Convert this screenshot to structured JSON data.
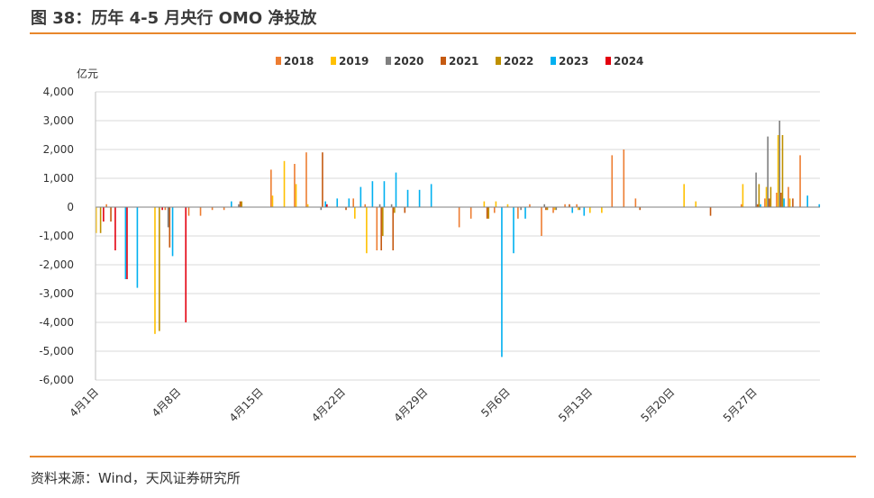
{
  "header": {
    "title": "图 38：历年 4-5 月央行 OMO 净投放"
  },
  "footer": {
    "source": "资料来源：Wind，天风证券研究所"
  },
  "chart_data": {
    "type": "bar",
    "ylabel": "亿元",
    "ylim": [
      -6000,
      4000
    ],
    "yticks": [
      4000,
      3000,
      2000,
      1000,
      0,
      -1000,
      -2000,
      -3000,
      -4000,
      -5000,
      -6000
    ],
    "ytick_labels": [
      "4,000",
      "3,000",
      "2,000",
      "1,000",
      "0",
      "-1,000",
      "-2,000",
      "-3,000",
      "-4,000",
      "-5,000",
      "-6,000"
    ],
    "x_range": [
      0,
      61
    ],
    "x_ticks": [
      {
        "x": 0,
        "label": "4月1日"
      },
      {
        "x": 7,
        "label": "4月8日"
      },
      {
        "x": 14,
        "label": "4月15日"
      },
      {
        "x": 21,
        "label": "4月22日"
      },
      {
        "x": 28,
        "label": "4月29日"
      },
      {
        "x": 35,
        "label": "5月6日"
      },
      {
        "x": 42,
        "label": "5月13日"
      },
      {
        "x": 49,
        "label": "5月20日"
      },
      {
        "x": 56,
        "label": "5月27日"
      }
    ],
    "legend_position": "top",
    "series": [
      {
        "name": "2018",
        "color": "#ed7d31",
        "points": [
          [
            1,
            100
          ],
          [
            6,
            -100
          ],
          [
            8,
            -300
          ],
          [
            9,
            -300
          ],
          [
            10,
            -100
          ],
          [
            11,
            -100
          ],
          [
            12,
            0
          ],
          [
            15,
            1300
          ],
          [
            17,
            1500
          ],
          [
            18,
            1900
          ],
          [
            22,
            300
          ],
          [
            23,
            100
          ],
          [
            24,
            -1500
          ],
          [
            31,
            -700
          ],
          [
            32,
            -400
          ],
          [
            34,
            -200
          ],
          [
            36,
            -400
          ],
          [
            37,
            100
          ],
          [
            38,
            -1000
          ],
          [
            39,
            -200
          ],
          [
            40,
            100
          ],
          [
            41,
            100
          ],
          [
            44,
            1800
          ],
          [
            45,
            2000
          ],
          [
            46,
            300
          ],
          [
            55,
            100
          ],
          [
            57,
            300
          ],
          [
            58,
            500
          ],
          [
            59,
            700
          ],
          [
            60,
            1800
          ]
        ]
      },
      {
        "name": "2019",
        "color": "#ffc000",
        "points": [
          [
            0,
            -900
          ],
          [
            5,
            -4400
          ],
          [
            15,
            400
          ],
          [
            16,
            1600
          ],
          [
            17,
            800
          ],
          [
            18,
            100
          ],
          [
            22,
            -400
          ],
          [
            23,
            -1600
          ],
          [
            33,
            200
          ],
          [
            34,
            200
          ],
          [
            35,
            100
          ],
          [
            39,
            -100
          ],
          [
            41,
            -100
          ],
          [
            42,
            -200
          ],
          [
            43,
            -200
          ],
          [
            50,
            800
          ],
          [
            51,
            200
          ],
          [
            55,
            800
          ],
          [
            57,
            700
          ],
          [
            58,
            2500
          ],
          [
            59,
            300
          ]
        ]
      },
      {
        "name": "2020",
        "color": "#7f7f7f",
        "points": [
          [
            6,
            -700
          ],
          [
            12,
            100
          ],
          [
            19,
            -100
          ],
          [
            24,
            100
          ],
          [
            25,
            100
          ],
          [
            36,
            -100
          ],
          [
            38,
            100
          ],
          [
            39,
            -100
          ],
          [
            41,
            -100
          ],
          [
            56,
            1200
          ],
          [
            57,
            2450
          ],
          [
            58,
            3000
          ]
        ]
      },
      {
        "name": "2021",
        "color": "#c55a11",
        "points": [
          [
            1,
            -500
          ],
          [
            6,
            -1400
          ],
          [
            12,
            200
          ],
          [
            19,
            1900
          ],
          [
            21,
            -100
          ],
          [
            24,
            -1500
          ],
          [
            25,
            -1500
          ],
          [
            26,
            -200
          ],
          [
            33,
            -400
          ],
          [
            38,
            -100
          ],
          [
            40,
            100
          ],
          [
            46,
            -100
          ],
          [
            52,
            -300
          ],
          [
            56,
            100
          ],
          [
            57,
            300
          ],
          [
            58,
            500
          ],
          [
            59,
            300
          ]
        ]
      },
      {
        "name": "2022",
        "color": "#bf9000",
        "points": [
          [
            0,
            -900
          ],
          [
            5,
            -4300
          ],
          [
            12,
            200
          ],
          [
            24,
            -1000
          ],
          [
            25,
            -200
          ],
          [
            33,
            -400
          ],
          [
            38,
            -100
          ],
          [
            56,
            800
          ],
          [
            57,
            700
          ],
          [
            58,
            2500
          ]
        ]
      },
      {
        "name": "2023",
        "color": "#00b0f0",
        "points": [
          [
            2,
            -2500
          ],
          [
            3,
            -2800
          ],
          [
            6,
            -1700
          ],
          [
            11,
            200
          ],
          [
            19,
            200
          ],
          [
            20,
            300
          ],
          [
            21,
            300
          ],
          [
            22,
            700
          ],
          [
            23,
            900
          ],
          [
            24,
            900
          ],
          [
            25,
            1200
          ],
          [
            26,
            600
          ],
          [
            27,
            600
          ],
          [
            28,
            800
          ],
          [
            34,
            -5200
          ],
          [
            35,
            -1600
          ],
          [
            36,
            -400
          ],
          [
            40,
            -200
          ],
          [
            41,
            -300
          ],
          [
            56,
            100
          ],
          [
            58,
            300
          ],
          [
            60,
            400
          ],
          [
            61,
            100
          ]
        ]
      },
      {
        "name": "2024",
        "color": "#e3000f",
        "points": [
          [
            0,
            -500
          ],
          [
            1,
            -1500
          ],
          [
            2,
            -2500
          ],
          [
            5,
            -100
          ],
          [
            7,
            -4000
          ],
          [
            19,
            100
          ]
        ]
      }
    ]
  }
}
